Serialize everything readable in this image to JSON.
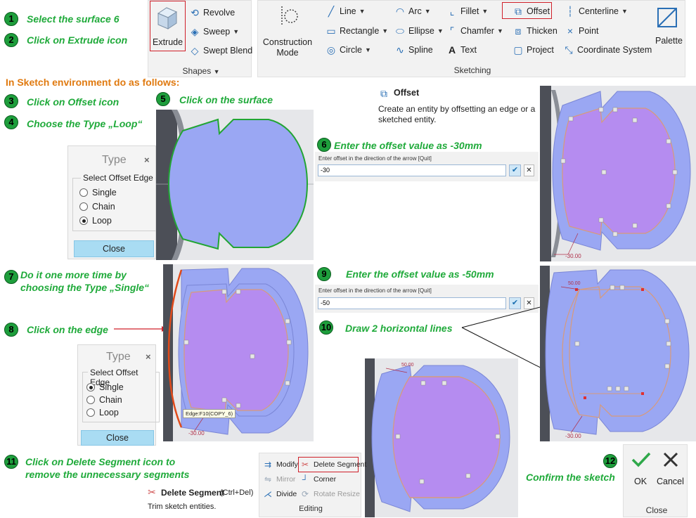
{
  "steps": {
    "s1": {
      "num": "1",
      "text": "Select the surface 6"
    },
    "s2": {
      "num": "2",
      "text": "Click on Extrude icon"
    },
    "heading": "In Sketch environment do as follows:",
    "s3": {
      "num": "3",
      "text": "Click on Offset icon"
    },
    "s4": {
      "num": "4",
      "text": "Choose the Type „Loop“"
    },
    "s5": {
      "num": "5",
      "text": "Click on the surface"
    },
    "s6": {
      "num": "6",
      "text": "Enter the offset value as -30mm"
    },
    "s7": {
      "num": "7",
      "text_line1": "Do it one more time by",
      "text_line2": "choosing  the Type „Single“"
    },
    "s8": {
      "num": "8",
      "text": "Click on the edge"
    },
    "s9": {
      "num": "9",
      "text": "Enter the offset value as -50mm"
    },
    "s10": {
      "num": "10",
      "text": "Draw 2 horizontal lines"
    },
    "s11": {
      "num": "11",
      "text_line1": "Click on Delete Segment icon to",
      "text_line2": "remove the unnecessary  segments"
    },
    "s12": {
      "num": "12",
      "text": "Confirm the sketch"
    }
  },
  "shapes_group": {
    "extrude": "Extrude",
    "revolve": "Revolve",
    "sweep": "Sweep",
    "swept_blend": "Swept Blend",
    "label": "Shapes"
  },
  "sketching_group": {
    "construction_line1": "Construction",
    "construction_line2": "Mode",
    "line": "Line",
    "arc": "Arc",
    "fillet": "Fillet",
    "offset": "Offset",
    "centerline": "Centerline",
    "rectangle": "Rectangle",
    "ellipse": "Ellipse",
    "chamfer": "Chamfer",
    "thicken": "Thicken",
    "point": "Point",
    "circle": "Circle",
    "spline": "Spline",
    "text": "Text",
    "project": "Project",
    "coordinate_system": "Coordinate System",
    "palette": "Palette",
    "label": "Sketching"
  },
  "offset_tooltip": {
    "title": "Offset",
    "desc_line1": "Create an entity by offsetting an edge or a",
    "desc_line2": "sketched entity."
  },
  "type_dialog_loop": {
    "title": "Type",
    "close_x": "×",
    "legend": "Select Offset Edge",
    "options": [
      "Single",
      "Chain",
      "Loop"
    ],
    "selected": "Loop",
    "close": "Close"
  },
  "type_dialog_single": {
    "title": "Type",
    "close_x": "×",
    "legend": "Select Offset Edge",
    "options": [
      "Single",
      "Chain",
      "Loop"
    ],
    "selected": "Single",
    "close": "Close"
  },
  "prompt1": {
    "label": "Enter offset in the direction of the arrow [Quit]",
    "value": "-30"
  },
  "prompt2": {
    "label": "Enter offset in the direction of the arrow [Quit]",
    "value": "-50"
  },
  "views": {
    "dim_30": "-30.00",
    "dim_50": "50.00",
    "edge_tip": "Edge:F10(COPY_6)"
  },
  "editing_group": {
    "modify": "Modify",
    "delete_segment": "Delete Segment",
    "mirror": "Mirror",
    "corner": "Corner",
    "divide": "Divide",
    "rotate_resize": "Rotate Resize",
    "label": "Editing"
  },
  "delete_tooltip": {
    "title": "Delete Segment",
    "shortcut": "(Ctrl+Del)",
    "desc": "Trim sketch entities."
  },
  "close_group": {
    "ok": "OK",
    "cancel": "Cancel",
    "label": "Close"
  },
  "colors": {
    "step_green": "#1faa3a",
    "heading_orange": "#e07a10",
    "surface_blue": "#9aa7f3",
    "offset_violet": "#b58cf0",
    "highlight_red": "#d0202a"
  }
}
